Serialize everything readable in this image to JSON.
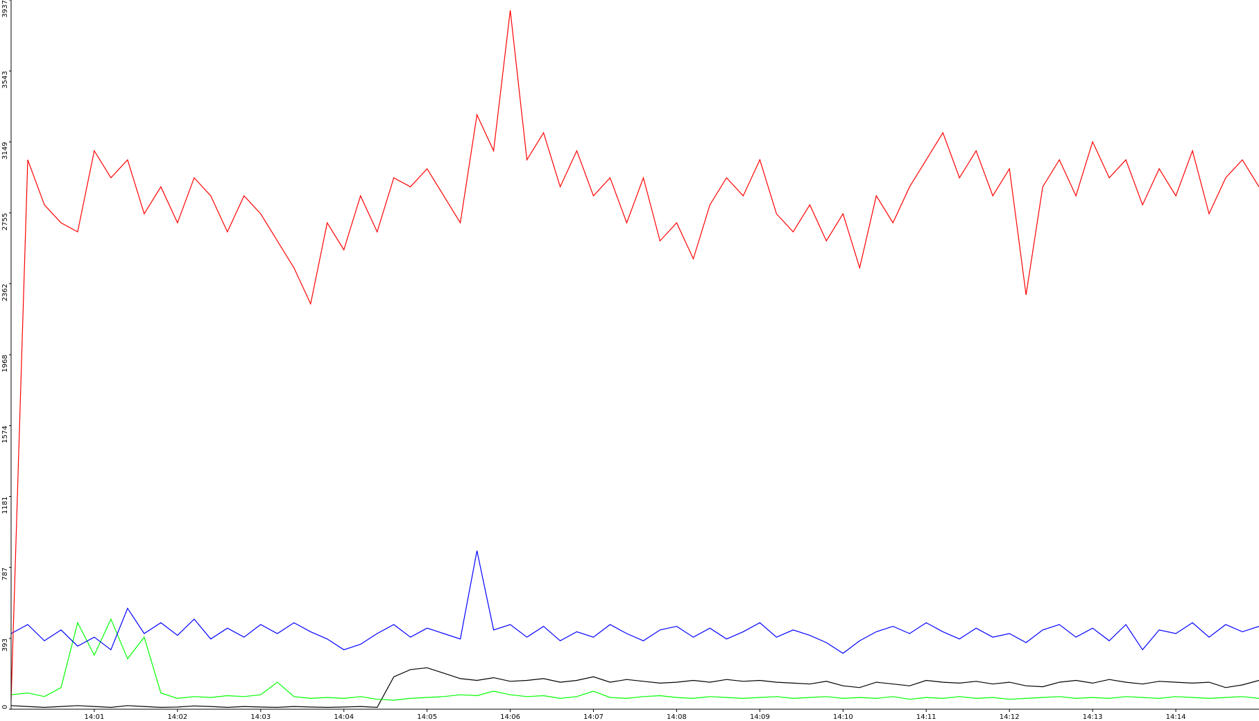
{
  "chart_data": {
    "type": "line",
    "x": [
      0,
      0.2,
      0.4,
      0.6,
      0.8,
      1,
      1.2,
      1.4,
      1.6,
      1.8,
      2,
      2.2,
      2.4,
      2.6,
      2.8,
      3,
      3.2,
      3.4,
      3.6,
      3.8,
      4,
      4.2,
      4.4,
      4.6,
      4.8,
      5,
      5.2,
      5.4,
      5.6,
      5.8,
      6,
      6.2,
      6.4,
      6.6,
      6.8,
      7,
      7.2,
      7.4,
      7.6,
      7.8,
      8,
      8.2,
      8.4,
      8.6,
      8.8,
      9,
      9.2,
      9.4,
      9.6,
      9.8,
      10,
      10.2,
      10.4,
      10.6,
      10.8,
      11,
      11.2,
      11.4,
      11.6,
      11.8,
      12,
      12.2,
      12.4,
      12.6,
      12.8,
      13,
      13.2,
      13.4,
      13.6,
      13.8,
      14,
      14.2,
      14.4,
      14.6,
      14.8,
      15
    ],
    "series": [
      {
        "color": "#ff0000",
        "values": [
          50,
          3050,
          2800,
          2700,
          2650,
          3100,
          2950,
          3050,
          2750,
          2900,
          2700,
          2950,
          2850,
          2650,
          2850,
          2750,
          2600,
          2450,
          2250,
          2700,
          2550,
          2850,
          2650,
          2950,
          2900,
          3000,
          2850,
          2700,
          3300,
          3100,
          3880,
          3050,
          3200,
          2900,
          3100,
          2850,
          2950,
          2700,
          2950,
          2600,
          2700,
          2500,
          2800,
          2950,
          2850,
          3050,
          2750,
          2650,
          2800,
          2600,
          2750,
          2450,
          2850,
          2700,
          2900,
          3050,
          3200,
          2950,
          3100,
          2850,
          3000,
          2300,
          2900,
          3050,
          2850,
          3150,
          2950,
          3050,
          2800,
          3000,
          2850,
          3100,
          2750,
          2950,
          3050,
          2900
        ]
      },
      {
        "color": "#0000ff",
        "values": [
          420,
          470,
          380,
          440,
          350,
          400,
          330,
          560,
          420,
          480,
          410,
          500,
          390,
          450,
          400,
          470,
          420,
          480,
          430,
          390,
          330,
          360,
          420,
          470,
          400,
          450,
          420,
          390,
          880,
          440,
          470,
          400,
          460,
          380,
          430,
          400,
          470,
          420,
          380,
          440,
          460,
          400,
          450,
          390,
          430,
          480,
          400,
          440,
          410,
          370,
          310,
          380,
          430,
          460,
          420,
          480,
          430,
          390,
          450,
          400,
          420,
          370,
          440,
          470,
          400,
          450,
          380,
          470,
          330,
          440,
          420,
          480,
          400,
          470,
          430,
          460
        ]
      },
      {
        "color": "#00ff00",
        "values": [
          80,
          90,
          70,
          120,
          480,
          300,
          500,
          280,
          400,
          90,
          60,
          70,
          65,
          75,
          70,
          80,
          150,
          70,
          60,
          65,
          60,
          70,
          55,
          50,
          60,
          65,
          70,
          80,
          75,
          100,
          80,
          70,
          75,
          60,
          70,
          100,
          65,
          60,
          70,
          75,
          65,
          60,
          70,
          65,
          60,
          65,
          70,
          60,
          65,
          70,
          60,
          65,
          60,
          70,
          55,
          65,
          60,
          70,
          60,
          65,
          55,
          60,
          65,
          70,
          60,
          65,
          60,
          70,
          65,
          60,
          70,
          65,
          60,
          65,
          70,
          60
        ]
      },
      {
        "color": "#000000",
        "values": [
          20,
          15,
          10,
          15,
          20,
          15,
          10,
          20,
          15,
          10,
          12,
          18,
          15,
          10,
          15,
          12,
          10,
          15,
          12,
          10,
          12,
          15,
          10,
          180,
          220,
          230,
          200,
          170,
          160,
          175,
          155,
          160,
          170,
          150,
          160,
          180,
          150,
          165,
          155,
          145,
          150,
          160,
          150,
          165,
          155,
          160,
          150,
          145,
          140,
          155,
          130,
          120,
          150,
          140,
          130,
          160,
          150,
          145,
          155,
          140,
          150,
          130,
          125,
          150,
          160,
          145,
          165,
          150,
          140,
          155,
          150,
          145,
          150,
          120,
          135,
          160
        ]
      }
    ],
    "xlim": [
      0,
      15
    ],
    "xticks": [
      {
        "value": 1,
        "label": "14:01"
      },
      {
        "value": 2,
        "label": "14:02"
      },
      {
        "value": 3,
        "label": "14:03"
      },
      {
        "value": 4,
        "label": "14:04"
      },
      {
        "value": 5,
        "label": "14:05"
      },
      {
        "value": 6,
        "label": "14:06"
      },
      {
        "value": 7,
        "label": "14:07"
      },
      {
        "value": 8,
        "label": "14:08"
      },
      {
        "value": 9,
        "label": "14:09"
      },
      {
        "value": 10,
        "label": "14:10"
      },
      {
        "value": 11,
        "label": "14:11"
      },
      {
        "value": 12,
        "label": "14:12"
      },
      {
        "value": 13,
        "label": "14:13"
      },
      {
        "value": 14,
        "label": "14:14"
      }
    ],
    "ylim": [
      0,
      3937
    ],
    "yticks": [
      0,
      393,
      787,
      1181,
      1574,
      1968,
      2362,
      2755,
      3149,
      3543,
      3937
    ]
  }
}
